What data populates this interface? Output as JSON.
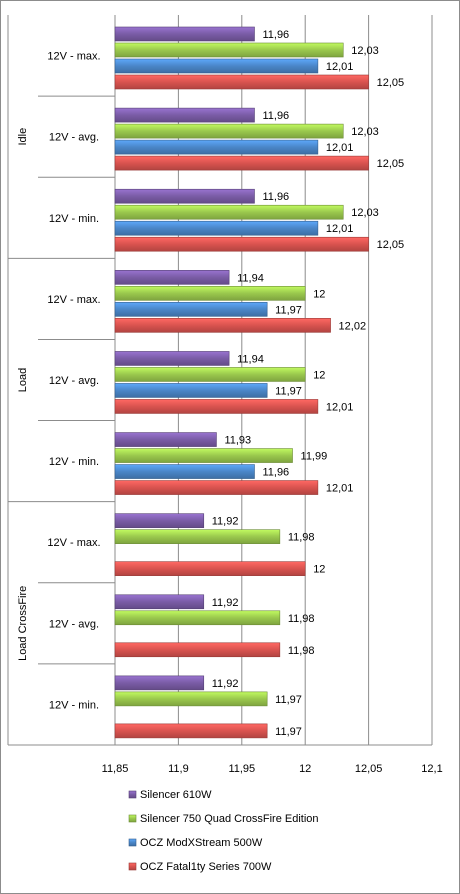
{
  "chart_data": {
    "type": "bar",
    "orientation": "horizontal",
    "groups": [
      {
        "name": "Idle",
        "categories": [
          "12V - max.",
          "12V - avg.",
          "12V - min."
        ]
      },
      {
        "name": "Load",
        "categories": [
          "12V - max.",
          "12V - avg.",
          "12V - min."
        ]
      },
      {
        "name": "Load CrossFire",
        "categories": [
          "12V - max.",
          "12V - avg.",
          "12V - min."
        ]
      }
    ],
    "series": [
      {
        "name": "Silencer 610W",
        "color": "#7a5ca6",
        "values": [
          11.96,
          11.96,
          11.96,
          11.94,
          11.94,
          11.93,
          11.92,
          11.92,
          11.92
        ],
        "labels": [
          "11,96",
          "11,96",
          "11,96",
          "11,94",
          "11,94",
          "11,93",
          "11,92",
          "11,92",
          "11,92"
        ]
      },
      {
        "name": "Silencer 750 Quad CrossFire Edition",
        "color": "#9ac84d",
        "values": [
          12.03,
          12.03,
          12.03,
          12.0,
          12.0,
          11.99,
          11.98,
          11.98,
          11.97
        ],
        "labels": [
          "12,03",
          "12,03",
          "12,03",
          "12",
          "12",
          "11,99",
          "11,98",
          "11,98",
          "11,97"
        ]
      },
      {
        "name": "OCZ ModXStream 500W",
        "color": "#4a86c8",
        "values": [
          12.01,
          12.01,
          12.01,
          11.97,
          11.97,
          11.96,
          null,
          null,
          null
        ],
        "labels": [
          "12,01",
          "12,01",
          "12,01",
          "11,97",
          "11,97",
          "11,96",
          "",
          "",
          ""
        ]
      },
      {
        "name": "OCZ Fatal1ty Series 700W",
        "color": "#d9534f",
        "values": [
          12.05,
          12.05,
          12.05,
          12.02,
          12.01,
          12.01,
          12.0,
          11.98,
          11.97
        ],
        "labels": [
          "12,05",
          "12,05",
          "12,05",
          "12,02",
          "12,01",
          "12,01",
          "12",
          "11,98",
          "11,97"
        ]
      }
    ],
    "xlim": [
      11.85,
      12.1
    ],
    "x_ticks": [
      11.85,
      11.9,
      11.95,
      12.0,
      12.05,
      12.1
    ],
    "x_tick_labels": [
      "11,85",
      "11,9",
      "11,95",
      "12",
      "12,05",
      "12,1"
    ],
    "grid": "vertical",
    "legend_position": "bottom",
    "legend_order": [
      0,
      1,
      2,
      3
    ]
  }
}
